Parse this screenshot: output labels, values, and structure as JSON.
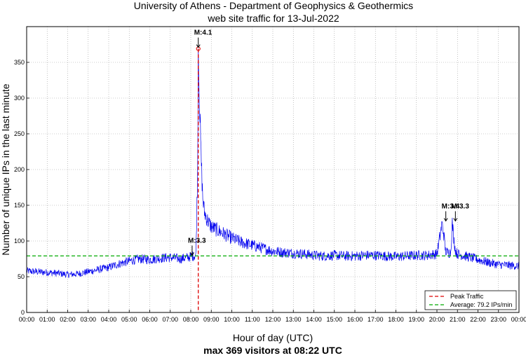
{
  "chart_data": {
    "type": "line",
    "title": [
      "University of Athens - Department of Geophysics & Geothermics",
      "web site traffic for 13-Jul-2022"
    ],
    "xlabel": "Hour of day (UTC)",
    "ylabel": "Number of unique IPs in the last minute",
    "footer": "max 369 visitors at 08:22 UTC",
    "xlim": [
      0,
      1440
    ],
    "ylim": [
      0,
      400
    ],
    "yticks": [
      0,
      50,
      100,
      150,
      200,
      250,
      300,
      350
    ],
    "xticks": [
      "00:00",
      "01:00",
      "02:00",
      "03:00",
      "04:00",
      "05:00",
      "06:00",
      "07:00",
      "08:00",
      "09:00",
      "10:00",
      "11:00",
      "12:00",
      "13:00",
      "14:00",
      "15:00",
      "16:00",
      "17:00",
      "18:00",
      "19:00",
      "20:00",
      "21:00",
      "22:00",
      "23:00",
      "00:00"
    ],
    "grid": true,
    "series": [
      {
        "name": "traffic",
        "color": "#0000ee",
        "x": [
          0,
          30,
          60,
          90,
          120,
          150,
          180,
          210,
          240,
          270,
          300,
          330,
          360,
          390,
          420,
          450,
          480,
          495,
          500,
          502,
          505,
          510,
          515,
          520,
          530,
          540,
          570,
          600,
          630,
          660,
          690,
          720,
          750,
          780,
          810,
          840,
          870,
          900,
          930,
          960,
          990,
          1020,
          1050,
          1080,
          1110,
          1140,
          1170,
          1200,
          1215,
          1220,
          1225,
          1230,
          1240,
          1245,
          1250,
          1255,
          1260,
          1275,
          1290,
          1320,
          1350,
          1380,
          1410,
          1440
        ],
        "values": [
          58,
          57,
          56,
          55,
          53,
          54,
          57,
          60,
          63,
          68,
          72,
          75,
          74,
          76,
          77,
          75,
          78,
          80,
          200,
          369,
          310,
          220,
          160,
          140,
          128,
          120,
          112,
          104,
          98,
          94,
          90,
          86,
          84,
          83,
          82,
          80,
          79,
          80,
          79,
          79,
          80,
          80,
          79,
          78,
          79,
          80,
          80,
          82,
          124,
          110,
          86,
          84,
          84,
          125,
          100,
          85,
          82,
          80,
          78,
          74,
          70,
          67,
          66,
          65
        ]
      }
    ],
    "peak": {
      "x": 502,
      "y": 369,
      "label": "Peak Traffic",
      "color": "#dd0000"
    },
    "average": {
      "y": 79.2,
      "label": "Average: 79.2 IPs/min",
      "color": "#00aa00"
    },
    "annotations": [
      {
        "label": "M:4.1",
        "x": 502,
        "y": 369
      },
      {
        "label": "M:3.3",
        "x": 484,
        "y": 78
      },
      {
        "label": "M:3.4",
        "x": 1226,
        "y": 126
      },
      {
        "label": "M:3.3",
        "x": 1254,
        "y": 126
      }
    ],
    "legend_position": "bottom-right"
  }
}
